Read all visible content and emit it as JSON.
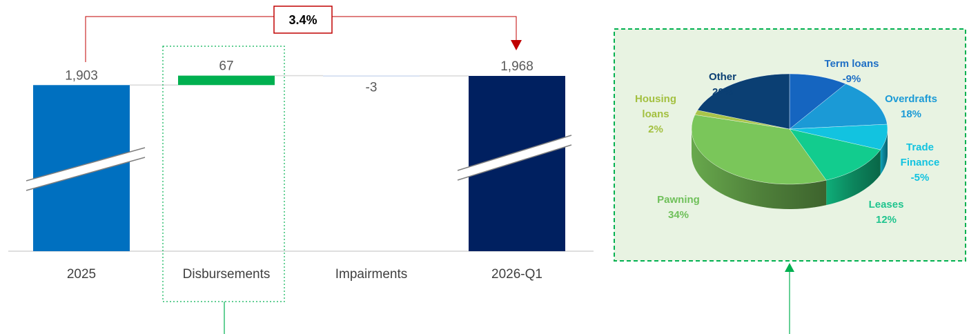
{
  "waterfall": {
    "type": "bar",
    "categories": [
      "2025",
      "Disbursements",
      "Impairments",
      "2026-Q1"
    ],
    "values": [
      1903,
      67,
      -3,
      1968
    ],
    "value_labels": [
      "1,903",
      "67",
      "-3",
      "1,968"
    ],
    "bar_kinds": [
      "total",
      "increase",
      "decrease",
      "total"
    ],
    "colors": {
      "start_total": "#0070C0",
      "end_total": "#002060",
      "increase": "#00B050",
      "decrease": "#B4C7E7",
      "axis": "#BFBFBF",
      "connector": "#D9D9D9"
    },
    "axis_break": true,
    "growth_label": "3.4%",
    "growth_color": "#C00000"
  },
  "pie": {
    "type": "pie",
    "slices": [
      {
        "name": "Term loans",
        "label": [
          "Term loans",
          "-9%"
        ],
        "percent_label": "-9%",
        "color": "#1565C0",
        "text_color": "#1F6FC5"
      },
      {
        "name": "Overdrafts",
        "label": [
          "Overdrafts",
          "18%"
        ],
        "percent_label": "18%",
        "color": "#1B9AD6",
        "text_color": "#1B9AD6"
      },
      {
        "name": "Trade Finance",
        "label": [
          "Trade",
          "Finance",
          "-5%"
        ],
        "percent_label": "-5%",
        "color": "#12C3E0",
        "text_color": "#12C3E0"
      },
      {
        "name": "Leases",
        "label": [
          "Leases",
          "12%"
        ],
        "percent_label": "12%",
        "color": "#12CC8E",
        "text_color": "#1FC48E"
      },
      {
        "name": "Pawning",
        "label": [
          "Pawning",
          "34%"
        ],
        "percent_label": "34%",
        "color": "#7AC65A",
        "text_color": "#6FC05A"
      },
      {
        "name": "Housing loans",
        "label": [
          "Housing",
          "loans",
          "2%"
        ],
        "percent_label": "2%",
        "color": "#A8C44A",
        "text_color": "#A3C040"
      },
      {
        "name": "Other",
        "label": [
          "Other",
          "20%"
        ],
        "percent_label": "20%",
        "color": "#0B3F73",
        "text_color": "#0B3F73"
      }
    ],
    "panel_fill": "#E8F3E2",
    "panel_border": "#00B050"
  },
  "callout_color": "#00B050"
}
